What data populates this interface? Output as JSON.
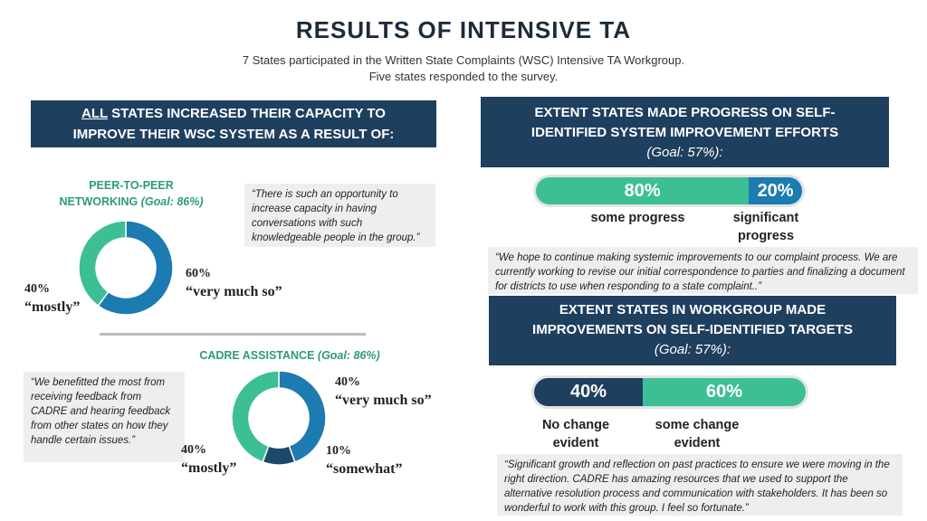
{
  "header": {
    "title": "RESULTS OF INTENSIVE TA",
    "subtitle_line1": "7 States participated in the Written State Complaints (WSC) Intensive TA Workgroup.",
    "subtitle_line2": "Five states responded to the survey."
  },
  "left": {
    "banner_all": "ALL",
    "banner_rest1": " STATES INCREASED THEIR CAPACITY TO",
    "banner_rest2": "IMPROVE THEIR WSC SYSTEM AS A RESULT OF:",
    "peer": {
      "label_line1": "PEER-TO-PEER",
      "label_line2": "NETWORKING ",
      "goal": "(Goal: 86%)",
      "quote": "“There is such an opportunity to increase capacity in having conversations with such knowledgeable people in the group.”",
      "slices": [
        {
          "percent": "60%",
          "label": "“very much so”",
          "value": 60,
          "color": "#1c7bb0"
        },
        {
          "percent": "40%",
          "label": "“mostly”",
          "value": 40,
          "color": "#3dbf95"
        }
      ]
    },
    "cadre": {
      "label": "CADRE ASSISTANCE ",
      "goal": "(Goal: 86%)",
      "quote": "“We benefitted the most from receiving feedback from CADRE and hearing feedback from other states on how they handle certain issues.”",
      "slices": [
        {
          "percent": "40%",
          "label": "“very much so”",
          "value": 40,
          "color": "#1c7bb0"
        },
        {
          "percent": "10%",
          "label": "“somewhat”",
          "value": 10,
          "color": "#1d4a6a"
        },
        {
          "percent": "40%",
          "label": "“mostly”",
          "value": 40,
          "color": "#3dbf95"
        }
      ]
    }
  },
  "right": {
    "progress": {
      "heading_line1": "EXTENT STATES MADE PROGRESS ON SELF-",
      "heading_line2": "IDENTIFIED SYSTEM IMPROVEMENT EFFORTS",
      "goal": "(Goal: 57%):",
      "segments": [
        {
          "value": 80,
          "label": "80%",
          "caption": "some progress",
          "color": "#3dbf95"
        },
        {
          "value": 20,
          "label": "20%",
          "caption": "significant progress",
          "color": "#1c7bb0"
        }
      ],
      "quote": "“We hope to continue making systemic improvements to our complaint process. We are currently working to revise our initial correspondence to parties and finalizing a document for districts to use when responding to a state complaint..”"
    },
    "targets": {
      "heading_line1": "EXTENT STATES IN WORKGROUP MADE",
      "heading_line2": "IMPROVEMENTS ON SELF-IDENTIFIED TARGETS",
      "goal": "(Goal: 57%):",
      "segments": [
        {
          "value": 40,
          "label": "40%",
          "caption": "No change evident",
          "color": "#1f3f5f"
        },
        {
          "value": 60,
          "label": "60%",
          "caption": "some change evident",
          "color": "#3dbf95"
        }
      ],
      "quote": "“Significant growth and reflection on past practices to ensure we were moving in the right direction. CADRE has amazing resources that we used to support the alternative resolution process and communication with stakeholders. It has been so wonderful to work with this group. I feel so fortunate.”"
    }
  }
}
